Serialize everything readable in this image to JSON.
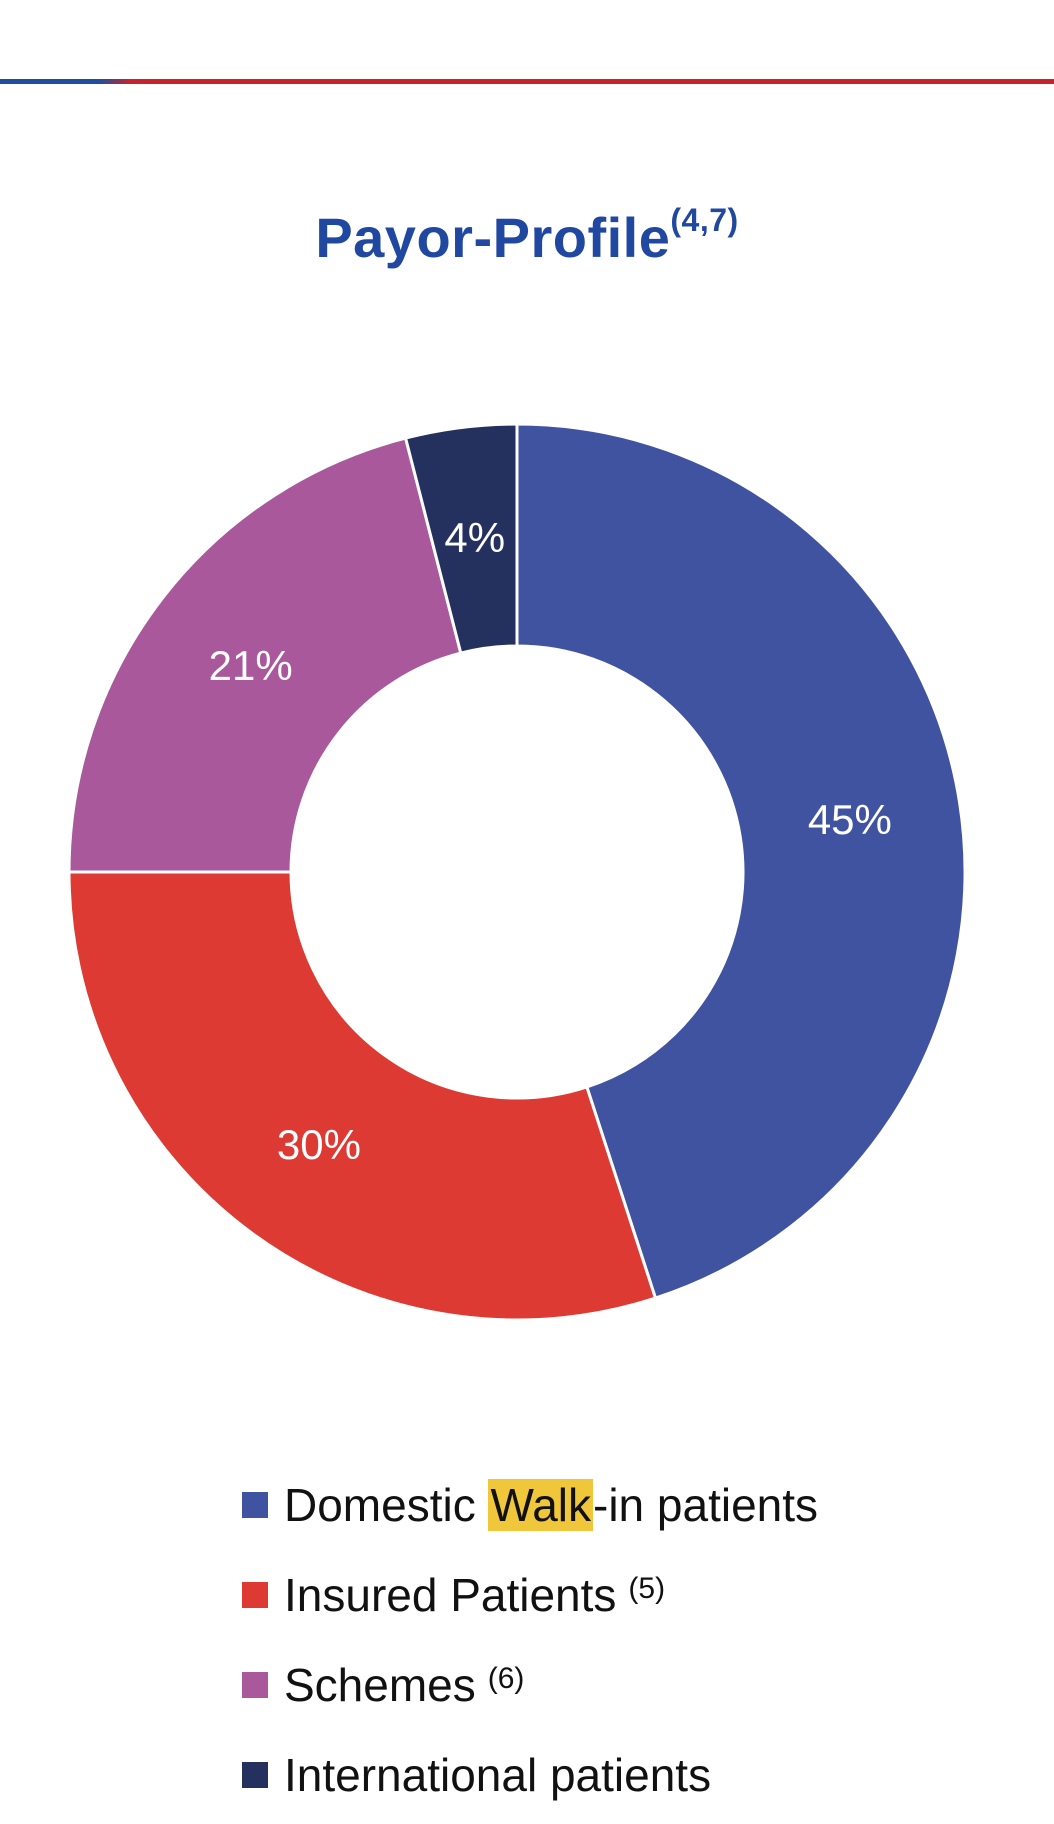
{
  "title": {
    "text": "Payor-Profile",
    "superscript": "(4,7)"
  },
  "colors": {
    "domestic": "#4053a1",
    "insured": "#dc3a33",
    "schemes": "#a8589b",
    "international": "#24305e",
    "highlight": "#f0c63a",
    "title": "#2048a0"
  },
  "chart_data": {
    "type": "pie",
    "variant": "donut",
    "title": "Payor-Profile",
    "categories": [
      "Domestic Walk-in patients",
      "Insured Patients",
      "Schemes",
      "International patients"
    ],
    "values": [
      45,
      30,
      21,
      4
    ],
    "labels": [
      "45%",
      "30%",
      "21%",
      "4%"
    ],
    "colors": [
      "#4053a1",
      "#dc3a33",
      "#a8589b",
      "#24305e"
    ],
    "start": "top",
    "direction": "clockwise",
    "legend_position": "bottom"
  },
  "legend": [
    {
      "pre": "Domestic ",
      "highlight": "Walk",
      "post": "-in patients",
      "sup": "",
      "color": "#4053a1"
    },
    {
      "pre": "Insured Patients",
      "highlight": "",
      "post": "",
      "sup": "(5)",
      "color": "#dc3a33"
    },
    {
      "pre": "Schemes",
      "highlight": "",
      "post": "",
      "sup": "(6)",
      "color": "#a8589b"
    },
    {
      "pre": "International patients",
      "highlight": "",
      "post": "",
      "sup": "",
      "color": "#24305e"
    }
  ]
}
